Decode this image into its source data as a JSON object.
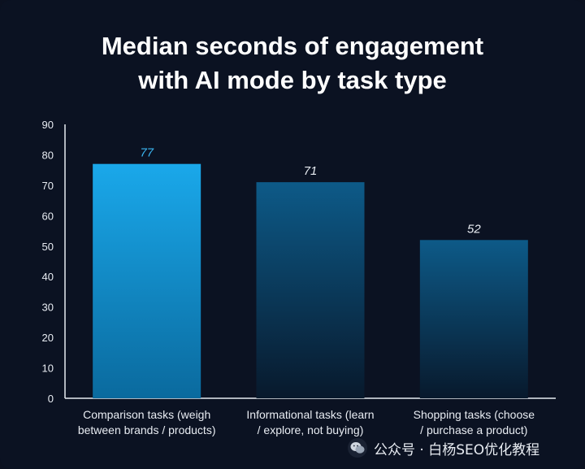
{
  "chart_data": {
    "type": "bar",
    "title_lines": [
      "Median seconds of engagement",
      "with AI mode by task type"
    ],
    "categories": [
      [
        "Comparison tasks (weigh",
        "between brands / products)"
      ],
      [
        "Informational tasks (learn",
        "/ explore, not buying)"
      ],
      [
        "Shopping tasks (choose",
        "/ purchase a product)"
      ]
    ],
    "values": [
      77,
      71,
      52
    ],
    "data_labels": [
      "77",
      "71",
      "52"
    ],
    "ylim": [
      0,
      90
    ],
    "yticks": [
      0,
      10,
      20,
      30,
      40,
      50,
      60,
      70,
      80,
      90
    ],
    "grid": false,
    "colors": {
      "highlight_top": "#1aa8ea",
      "highlight_bottom": "#0a6a9e",
      "normal_top": "#0d5a88",
      "normal_bottom": "#08192c",
      "highlight_label": "#3bb6f2",
      "normal_label": "#e8ecf2",
      "axis_text": "#e8ecf2"
    }
  },
  "watermark": {
    "text": "公众号 · 白杨SEO优化教程",
    "icon": "wechat-icon"
  }
}
